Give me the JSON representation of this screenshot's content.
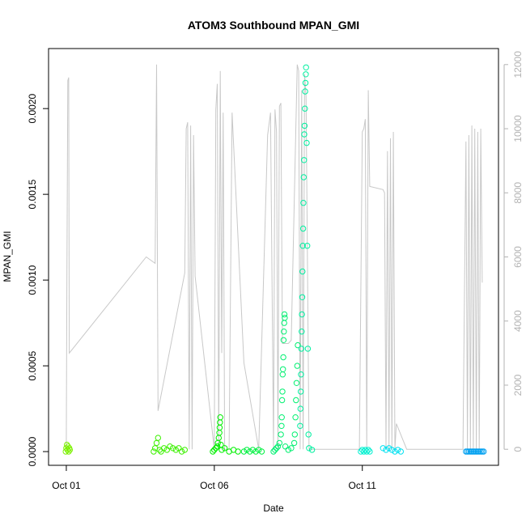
{
  "chart_data": {
    "type": "scatter",
    "title": "ATOM3 Southbound MPAN_GMI",
    "xlabel": "Date",
    "ylabel": "MPAN_GMI",
    "x_ticks": [
      "Oct 01",
      "Oct 06",
      "Oct 11"
    ],
    "y_ticks": [
      "0.0000",
      "0.0005",
      "0.0010",
      "0.0015",
      "0.0020"
    ],
    "y_tick_values": [
      0,
      0.0005,
      0.001,
      0.0015,
      0.002
    ],
    "ylim": [
      -8e-05,
      0.00235
    ],
    "xlim": [
      -0.6,
      14.6
    ],
    "y2_ticks": [
      "0",
      "2000",
      "4000",
      "6000",
      "8000",
      "10000",
      "12000"
    ],
    "y2_tick_values": [
      0,
      2000,
      4000,
      6000,
      8000,
      10000,
      12000
    ],
    "y2_range": [
      -500,
      12500
    ],
    "grid": false,
    "colors": {
      "trace": "#c8c8c8",
      "axis": "#000000",
      "right_axis": "#b3b3b3"
    },
    "series": [
      {
        "color": "#7cf000",
        "points": [
          [
            -0.02,
            0
          ],
          [
            0,
            2e-05
          ],
          [
            0.02,
            4e-05
          ],
          [
            0.04,
            1e-05
          ],
          [
            0.06,
            3e-05
          ],
          [
            0.08,
            0
          ],
          [
            0.1,
            2e-05
          ],
          [
            0.12,
            1e-05
          ]
        ]
      },
      {
        "color": "#3cf000",
        "points": [
          [
            2.95,
            0
          ],
          [
            3.0,
            2e-05
          ],
          [
            3.05,
            5e-05
          ],
          [
            3.1,
            8e-05
          ],
          [
            3.15,
            1e-05
          ],
          [
            3.2,
            0
          ],
          [
            3.3,
            2e-05
          ],
          [
            3.4,
            1e-05
          ],
          [
            3.5,
            3e-05
          ],
          [
            3.6,
            2e-05
          ],
          [
            3.7,
            1e-05
          ],
          [
            3.8,
            2e-05
          ],
          [
            3.9,
            0
          ],
          [
            4.0,
            1e-05
          ]
        ]
      },
      {
        "color": "#00f000",
        "points": [
          [
            4.95,
            0
          ],
          [
            5.0,
            1e-05
          ],
          [
            5.05,
            2e-05
          ],
          [
            5.1,
            3e-05
          ],
          [
            5.12,
            5e-05
          ],
          [
            5.15,
            8e-05
          ],
          [
            5.17,
            0.00011
          ],
          [
            5.18,
            0.00014
          ],
          [
            5.19,
            0.00017
          ],
          [
            5.2,
            0.0002
          ],
          [
            5.22,
            4e-05
          ],
          [
            5.25,
            1e-05
          ],
          [
            5.35,
            2e-05
          ],
          [
            5.5,
            0
          ],
          [
            5.65,
            1e-05
          ],
          [
            5.8,
            0
          ]
        ]
      },
      {
        "color": "#00f040",
        "points": [
          [
            6.0,
            0
          ],
          [
            6.1,
            1e-05
          ],
          [
            6.2,
            0
          ],
          [
            6.3,
            1e-05
          ],
          [
            6.4,
            0
          ],
          [
            6.5,
            1e-05
          ],
          [
            6.6,
            0
          ]
        ]
      },
      {
        "color": "#00f070",
        "points": [
          [
            7.0,
            0
          ],
          [
            7.05,
            1e-05
          ],
          [
            7.1,
            2e-05
          ],
          [
            7.15,
            3e-05
          ],
          [
            7.2,
            5e-05
          ],
          [
            7.25,
            0.0001
          ],
          [
            7.27,
            0.00015
          ],
          [
            7.28,
            0.0002
          ],
          [
            7.29,
            0.0003
          ],
          [
            7.3,
            0.00035
          ],
          [
            7.31,
            0.00045
          ],
          [
            7.32,
            0.00048
          ],
          [
            7.33,
            0.00055
          ],
          [
            7.34,
            0.00065
          ],
          [
            7.35,
            0.0007
          ],
          [
            7.36,
            0.00075
          ],
          [
            7.37,
            0.0008
          ],
          [
            7.38,
            0.00078
          ],
          [
            7.4,
            3e-05
          ],
          [
            7.5,
            1e-05
          ],
          [
            7.6,
            2e-05
          ],
          [
            7.7,
            5e-05
          ],
          [
            7.72,
            0.0001
          ],
          [
            7.74,
            0.0002
          ],
          [
            7.76,
            0.0003
          ],
          [
            7.78,
            0.0004
          ],
          [
            7.8,
            0.0005
          ],
          [
            7.82,
            0.00062
          ]
        ]
      },
      {
        "color": "#00f0a0",
        "points": [
          [
            7.9,
            0.00015
          ],
          [
            7.91,
            0.00025
          ],
          [
            7.92,
            0.00035
          ],
          [
            7.93,
            0.00045
          ],
          [
            7.94,
            0.0006
          ],
          [
            7.95,
            0.0007
          ],
          [
            7.96,
            0.0008
          ],
          [
            7.97,
            0.0009
          ],
          [
            7.98,
            0.00105
          ],
          [
            7.99,
            0.0012
          ],
          [
            8.0,
            0.0013
          ],
          [
            8.01,
            0.00145
          ],
          [
            8.02,
            0.0016
          ],
          [
            8.03,
            0.0017
          ],
          [
            8.04,
            0.00185
          ],
          [
            8.05,
            0.0019
          ],
          [
            8.06,
            0.002
          ],
          [
            8.07,
            0.0021
          ],
          [
            8.08,
            0.00215
          ],
          [
            8.09,
            0.0022
          ],
          [
            8.1,
            0.00224
          ],
          [
            8.12,
            0.0018
          ],
          [
            8.14,
            0.0012
          ],
          [
            8.16,
            0.0006
          ],
          [
            8.18,
            0.0001
          ],
          [
            8.2,
            2e-05
          ],
          [
            8.3,
            1e-05
          ]
        ]
      },
      {
        "color": "#00f0d0",
        "points": [
          [
            9.95,
            0
          ],
          [
            10.0,
            1e-05
          ],
          [
            10.05,
            0
          ],
          [
            10.1,
            1e-05
          ],
          [
            10.15,
            0
          ],
          [
            10.2,
            1e-05
          ],
          [
            10.25,
            0
          ]
        ]
      },
      {
        "color": "#00e0f0",
        "points": [
          [
            10.7,
            2e-05
          ],
          [
            10.8,
            1e-05
          ],
          [
            10.9,
            2e-05
          ],
          [
            11.0,
            1e-05
          ],
          [
            11.1,
            0
          ],
          [
            11.2,
            1e-05
          ],
          [
            11.3,
            0
          ]
        ]
      },
      {
        "color": "#00a0f0",
        "points": [
          [
            13.5,
            0
          ],
          [
            13.55,
            0
          ],
          [
            13.6,
            0
          ],
          [
            13.65,
            0
          ],
          [
            13.7,
            0
          ],
          [
            13.75,
            0
          ],
          [
            13.8,
            0
          ],
          [
            13.85,
            0
          ],
          [
            13.9,
            0
          ],
          [
            13.95,
            0
          ],
          [
            14.0,
            0
          ],
          [
            14.05,
            0
          ],
          [
            14.1,
            0
          ]
        ]
      }
    ],
    "secondary_trace": [
      [
        0.0,
        0
      ],
      [
        0.02,
        5500
      ],
      [
        0.05,
        11500
      ],
      [
        0.08,
        11600
      ],
      [
        0.1,
        3000
      ],
      [
        2.7,
        6000
      ],
      [
        3.0,
        5800
      ],
      [
        3.05,
        12000
      ],
      [
        3.1,
        1200
      ],
      [
        4.0,
        5500
      ],
      [
        4.05,
        10000
      ],
      [
        4.1,
        10200
      ],
      [
        4.15,
        0
      ],
      [
        4.2,
        10100
      ],
      [
        4.25,
        0
      ],
      [
        4.3,
        9800
      ],
      [
        4.35,
        5400
      ],
      [
        5.0,
        0
      ],
      [
        5.05,
        10600
      ],
      [
        5.1,
        11400
      ],
      [
        5.15,
        0
      ],
      [
        5.2,
        11800
      ],
      [
        5.25,
        3000
      ],
      [
        5.3,
        10500
      ],
      [
        5.35,
        0
      ],
      [
        5.5,
        0
      ],
      [
        5.6,
        10500
      ],
      [
        6.0,
        2700
      ],
      [
        6.5,
        0
      ],
      [
        6.8,
        9800
      ],
      [
        6.9,
        10500
      ],
      [
        7.0,
        0
      ],
      [
        7.05,
        10600
      ],
      [
        7.1,
        9900
      ],
      [
        7.15,
        0
      ],
      [
        7.2,
        10700
      ],
      [
        7.25,
        10800
      ],
      [
        7.3,
        3300
      ],
      [
        7.4,
        3300
      ],
      [
        7.5,
        3300
      ],
      [
        7.6,
        3400
      ],
      [
        7.8,
        12000
      ],
      [
        7.85,
        11800
      ],
      [
        7.9,
        0
      ],
      [
        7.95,
        11200
      ],
      [
        8.0,
        0
      ],
      [
        8.05,
        11700
      ],
      [
        8.1,
        11000
      ],
      [
        8.2,
        0
      ],
      [
        9.9,
        0
      ],
      [
        10.0,
        9900
      ],
      [
        10.05,
        10000
      ],
      [
        10.1,
        10300
      ],
      [
        10.15,
        0
      ],
      [
        10.2,
        11200
      ],
      [
        10.25,
        8200
      ],
      [
        10.7,
        8100
      ],
      [
        10.75,
        8000
      ],
      [
        10.8,
        0
      ],
      [
        10.85,
        9300
      ],
      [
        10.9,
        0
      ],
      [
        10.95,
        9700
      ],
      [
        11.0,
        0
      ],
      [
        11.05,
        9900
      ],
      [
        11.1,
        0
      ],
      [
        11.15,
        800
      ],
      [
        11.5,
        0
      ],
      [
        13.4,
        0
      ],
      [
        13.5,
        9600
      ],
      [
        13.55,
        0
      ],
      [
        13.6,
        9800
      ],
      [
        13.65,
        0
      ],
      [
        13.7,
        10100
      ],
      [
        13.75,
        0
      ],
      [
        13.8,
        10000
      ],
      [
        13.85,
        0
      ],
      [
        13.9,
        9900
      ],
      [
        13.95,
        0
      ],
      [
        14.0,
        10000
      ],
      [
        14.05,
        5200
      ]
    ]
  }
}
